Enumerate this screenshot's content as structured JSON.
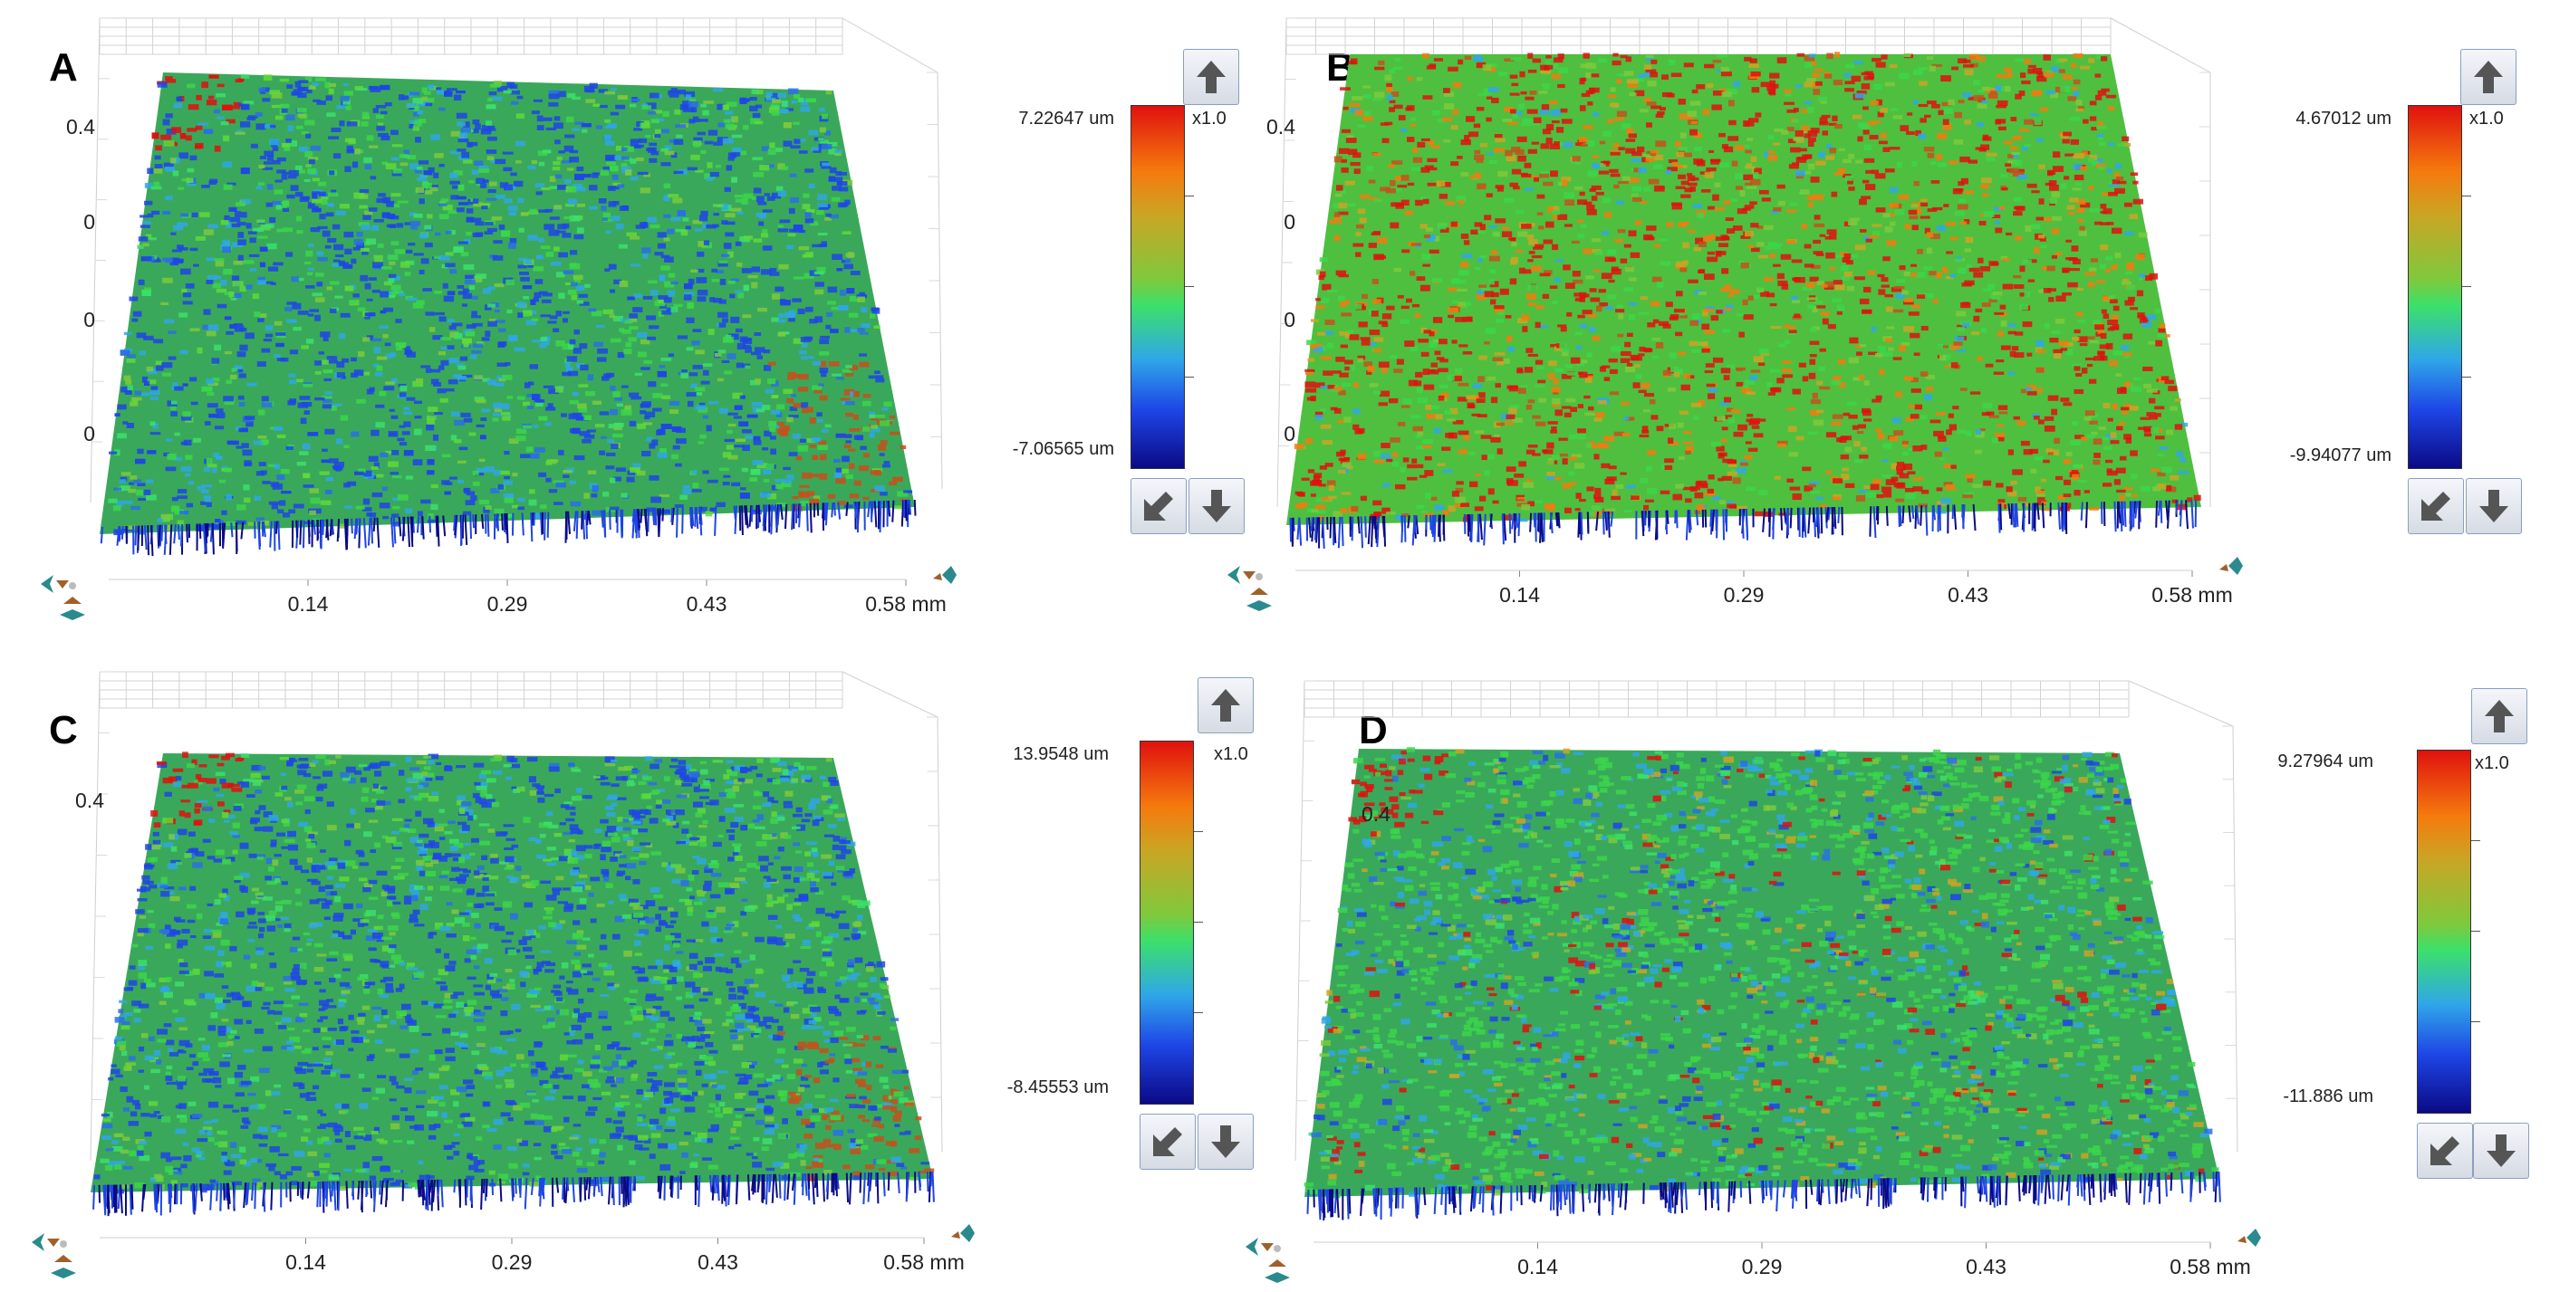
{
  "panels": [
    {
      "id": "A",
      "letter": "A",
      "y_labels": [
        "0.4",
        "0",
        "0",
        "0"
      ],
      "x_ticks": [
        "0.14",
        "0.29",
        "0.43",
        "0.58 mm"
      ],
      "scale_max": "7.22647 um",
      "scale_min": "-7.06565 um",
      "scale_multiplier": "x1.0",
      "dominant": "blue-green",
      "stripe_direction": "diagonal-down-left"
    },
    {
      "id": "B",
      "letter": "B",
      "y_labels": [
        "0.4",
        "0",
        "0",
        "0"
      ],
      "x_ticks": [
        "0.14",
        "0.29",
        "0.43",
        "0.58 mm"
      ],
      "scale_max": "4.67012 um",
      "scale_min": "-9.94077 um",
      "scale_multiplier": "x1.0",
      "dominant": "red-green",
      "stripe_direction": "diagonal-down-right"
    },
    {
      "id": "C",
      "letter": "C",
      "y_labels": [
        "0.4"
      ],
      "x_ticks": [
        "0.14",
        "0.29",
        "0.43",
        "0.58 mm"
      ],
      "scale_max": "13.9548 um",
      "scale_min": "-8.45553 um",
      "scale_multiplier": "x1.0",
      "dominant": "blue-green",
      "stripe_direction": "diagonal-down-left"
    },
    {
      "id": "D",
      "letter": "D",
      "y_labels": [
        "0.4"
      ],
      "x_ticks": [
        "0.14",
        "0.29",
        "0.43",
        "0.58 mm"
      ],
      "scale_max": "9.27964 um",
      "scale_min": "-11.886 um",
      "scale_multiplier": "x1.0",
      "dominant": "green-blue",
      "stripe_direction": "diagonal-down-left"
    }
  ],
  "colors": {
    "red": "#e0110f",
    "green": "#3cd64a",
    "blue": "#1e45e6",
    "dark_blue": "#0a0a86",
    "grid": "#c8c8c8"
  },
  "icons": {
    "up_button": "arrow-up-icon",
    "down_button": "arrow-down-icon",
    "reset_button": "arrow-down-left-icon",
    "gizmo": "navigation-gizmo-icon"
  }
}
